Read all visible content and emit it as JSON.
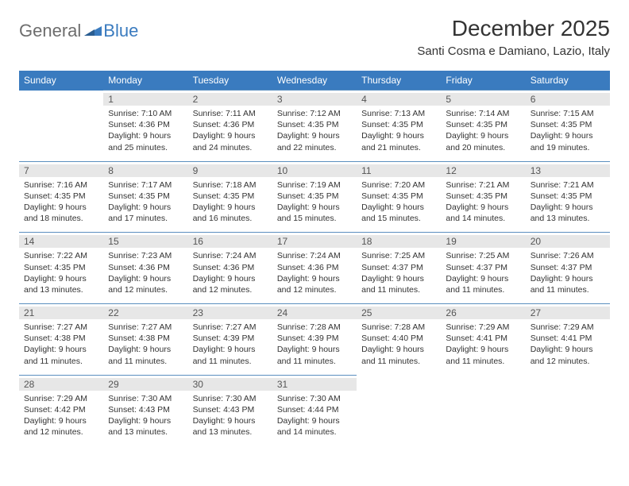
{
  "logo": {
    "general": "General",
    "blue": "Blue"
  },
  "title": "December 2025",
  "subtitle": "Santi Cosma e Damiano, Lazio, Italy",
  "colors": {
    "header_bg": "#3a7bbf",
    "header_text": "#ffffff",
    "daynum_bg": "#e7e7e7",
    "row_border": "#5b8fbf",
    "text": "#333333",
    "logo_gray": "#6d6d6d",
    "logo_blue": "#3a7bbf"
  },
  "day_headers": [
    "Sunday",
    "Monday",
    "Tuesday",
    "Wednesday",
    "Thursday",
    "Friday",
    "Saturday"
  ],
  "weeks": [
    [
      null,
      {
        "n": "1",
        "sr": "Sunrise: 7:10 AM",
        "ss": "Sunset: 4:36 PM",
        "dl": "Daylight: 9 hours and 25 minutes."
      },
      {
        "n": "2",
        "sr": "Sunrise: 7:11 AM",
        "ss": "Sunset: 4:36 PM",
        "dl": "Daylight: 9 hours and 24 minutes."
      },
      {
        "n": "3",
        "sr": "Sunrise: 7:12 AM",
        "ss": "Sunset: 4:35 PM",
        "dl": "Daylight: 9 hours and 22 minutes."
      },
      {
        "n": "4",
        "sr": "Sunrise: 7:13 AM",
        "ss": "Sunset: 4:35 PM",
        "dl": "Daylight: 9 hours and 21 minutes."
      },
      {
        "n": "5",
        "sr": "Sunrise: 7:14 AM",
        "ss": "Sunset: 4:35 PM",
        "dl": "Daylight: 9 hours and 20 minutes."
      },
      {
        "n": "6",
        "sr": "Sunrise: 7:15 AM",
        "ss": "Sunset: 4:35 PM",
        "dl": "Daylight: 9 hours and 19 minutes."
      }
    ],
    [
      {
        "n": "7",
        "sr": "Sunrise: 7:16 AM",
        "ss": "Sunset: 4:35 PM",
        "dl": "Daylight: 9 hours and 18 minutes."
      },
      {
        "n": "8",
        "sr": "Sunrise: 7:17 AM",
        "ss": "Sunset: 4:35 PM",
        "dl": "Daylight: 9 hours and 17 minutes."
      },
      {
        "n": "9",
        "sr": "Sunrise: 7:18 AM",
        "ss": "Sunset: 4:35 PM",
        "dl": "Daylight: 9 hours and 16 minutes."
      },
      {
        "n": "10",
        "sr": "Sunrise: 7:19 AM",
        "ss": "Sunset: 4:35 PM",
        "dl": "Daylight: 9 hours and 15 minutes."
      },
      {
        "n": "11",
        "sr": "Sunrise: 7:20 AM",
        "ss": "Sunset: 4:35 PM",
        "dl": "Daylight: 9 hours and 15 minutes."
      },
      {
        "n": "12",
        "sr": "Sunrise: 7:21 AM",
        "ss": "Sunset: 4:35 PM",
        "dl": "Daylight: 9 hours and 14 minutes."
      },
      {
        "n": "13",
        "sr": "Sunrise: 7:21 AM",
        "ss": "Sunset: 4:35 PM",
        "dl": "Daylight: 9 hours and 13 minutes."
      }
    ],
    [
      {
        "n": "14",
        "sr": "Sunrise: 7:22 AM",
        "ss": "Sunset: 4:35 PM",
        "dl": "Daylight: 9 hours and 13 minutes."
      },
      {
        "n": "15",
        "sr": "Sunrise: 7:23 AM",
        "ss": "Sunset: 4:36 PM",
        "dl": "Daylight: 9 hours and 12 minutes."
      },
      {
        "n": "16",
        "sr": "Sunrise: 7:24 AM",
        "ss": "Sunset: 4:36 PM",
        "dl": "Daylight: 9 hours and 12 minutes."
      },
      {
        "n": "17",
        "sr": "Sunrise: 7:24 AM",
        "ss": "Sunset: 4:36 PM",
        "dl": "Daylight: 9 hours and 12 minutes."
      },
      {
        "n": "18",
        "sr": "Sunrise: 7:25 AM",
        "ss": "Sunset: 4:37 PM",
        "dl": "Daylight: 9 hours and 11 minutes."
      },
      {
        "n": "19",
        "sr": "Sunrise: 7:25 AM",
        "ss": "Sunset: 4:37 PM",
        "dl": "Daylight: 9 hours and 11 minutes."
      },
      {
        "n": "20",
        "sr": "Sunrise: 7:26 AM",
        "ss": "Sunset: 4:37 PM",
        "dl": "Daylight: 9 hours and 11 minutes."
      }
    ],
    [
      {
        "n": "21",
        "sr": "Sunrise: 7:27 AM",
        "ss": "Sunset: 4:38 PM",
        "dl": "Daylight: 9 hours and 11 minutes."
      },
      {
        "n": "22",
        "sr": "Sunrise: 7:27 AM",
        "ss": "Sunset: 4:38 PM",
        "dl": "Daylight: 9 hours and 11 minutes."
      },
      {
        "n": "23",
        "sr": "Sunrise: 7:27 AM",
        "ss": "Sunset: 4:39 PM",
        "dl": "Daylight: 9 hours and 11 minutes."
      },
      {
        "n": "24",
        "sr": "Sunrise: 7:28 AM",
        "ss": "Sunset: 4:39 PM",
        "dl": "Daylight: 9 hours and 11 minutes."
      },
      {
        "n": "25",
        "sr": "Sunrise: 7:28 AM",
        "ss": "Sunset: 4:40 PM",
        "dl": "Daylight: 9 hours and 11 minutes."
      },
      {
        "n": "26",
        "sr": "Sunrise: 7:29 AM",
        "ss": "Sunset: 4:41 PM",
        "dl": "Daylight: 9 hours and 11 minutes."
      },
      {
        "n": "27",
        "sr": "Sunrise: 7:29 AM",
        "ss": "Sunset: 4:41 PM",
        "dl": "Daylight: 9 hours and 12 minutes."
      }
    ],
    [
      {
        "n": "28",
        "sr": "Sunrise: 7:29 AM",
        "ss": "Sunset: 4:42 PM",
        "dl": "Daylight: 9 hours and 12 minutes."
      },
      {
        "n": "29",
        "sr": "Sunrise: 7:30 AM",
        "ss": "Sunset: 4:43 PM",
        "dl": "Daylight: 9 hours and 13 minutes."
      },
      {
        "n": "30",
        "sr": "Sunrise: 7:30 AM",
        "ss": "Sunset: 4:43 PM",
        "dl": "Daylight: 9 hours and 13 minutes."
      },
      {
        "n": "31",
        "sr": "Sunrise: 7:30 AM",
        "ss": "Sunset: 4:44 PM",
        "dl": "Daylight: 9 hours and 14 minutes."
      },
      null,
      null,
      null
    ]
  ]
}
